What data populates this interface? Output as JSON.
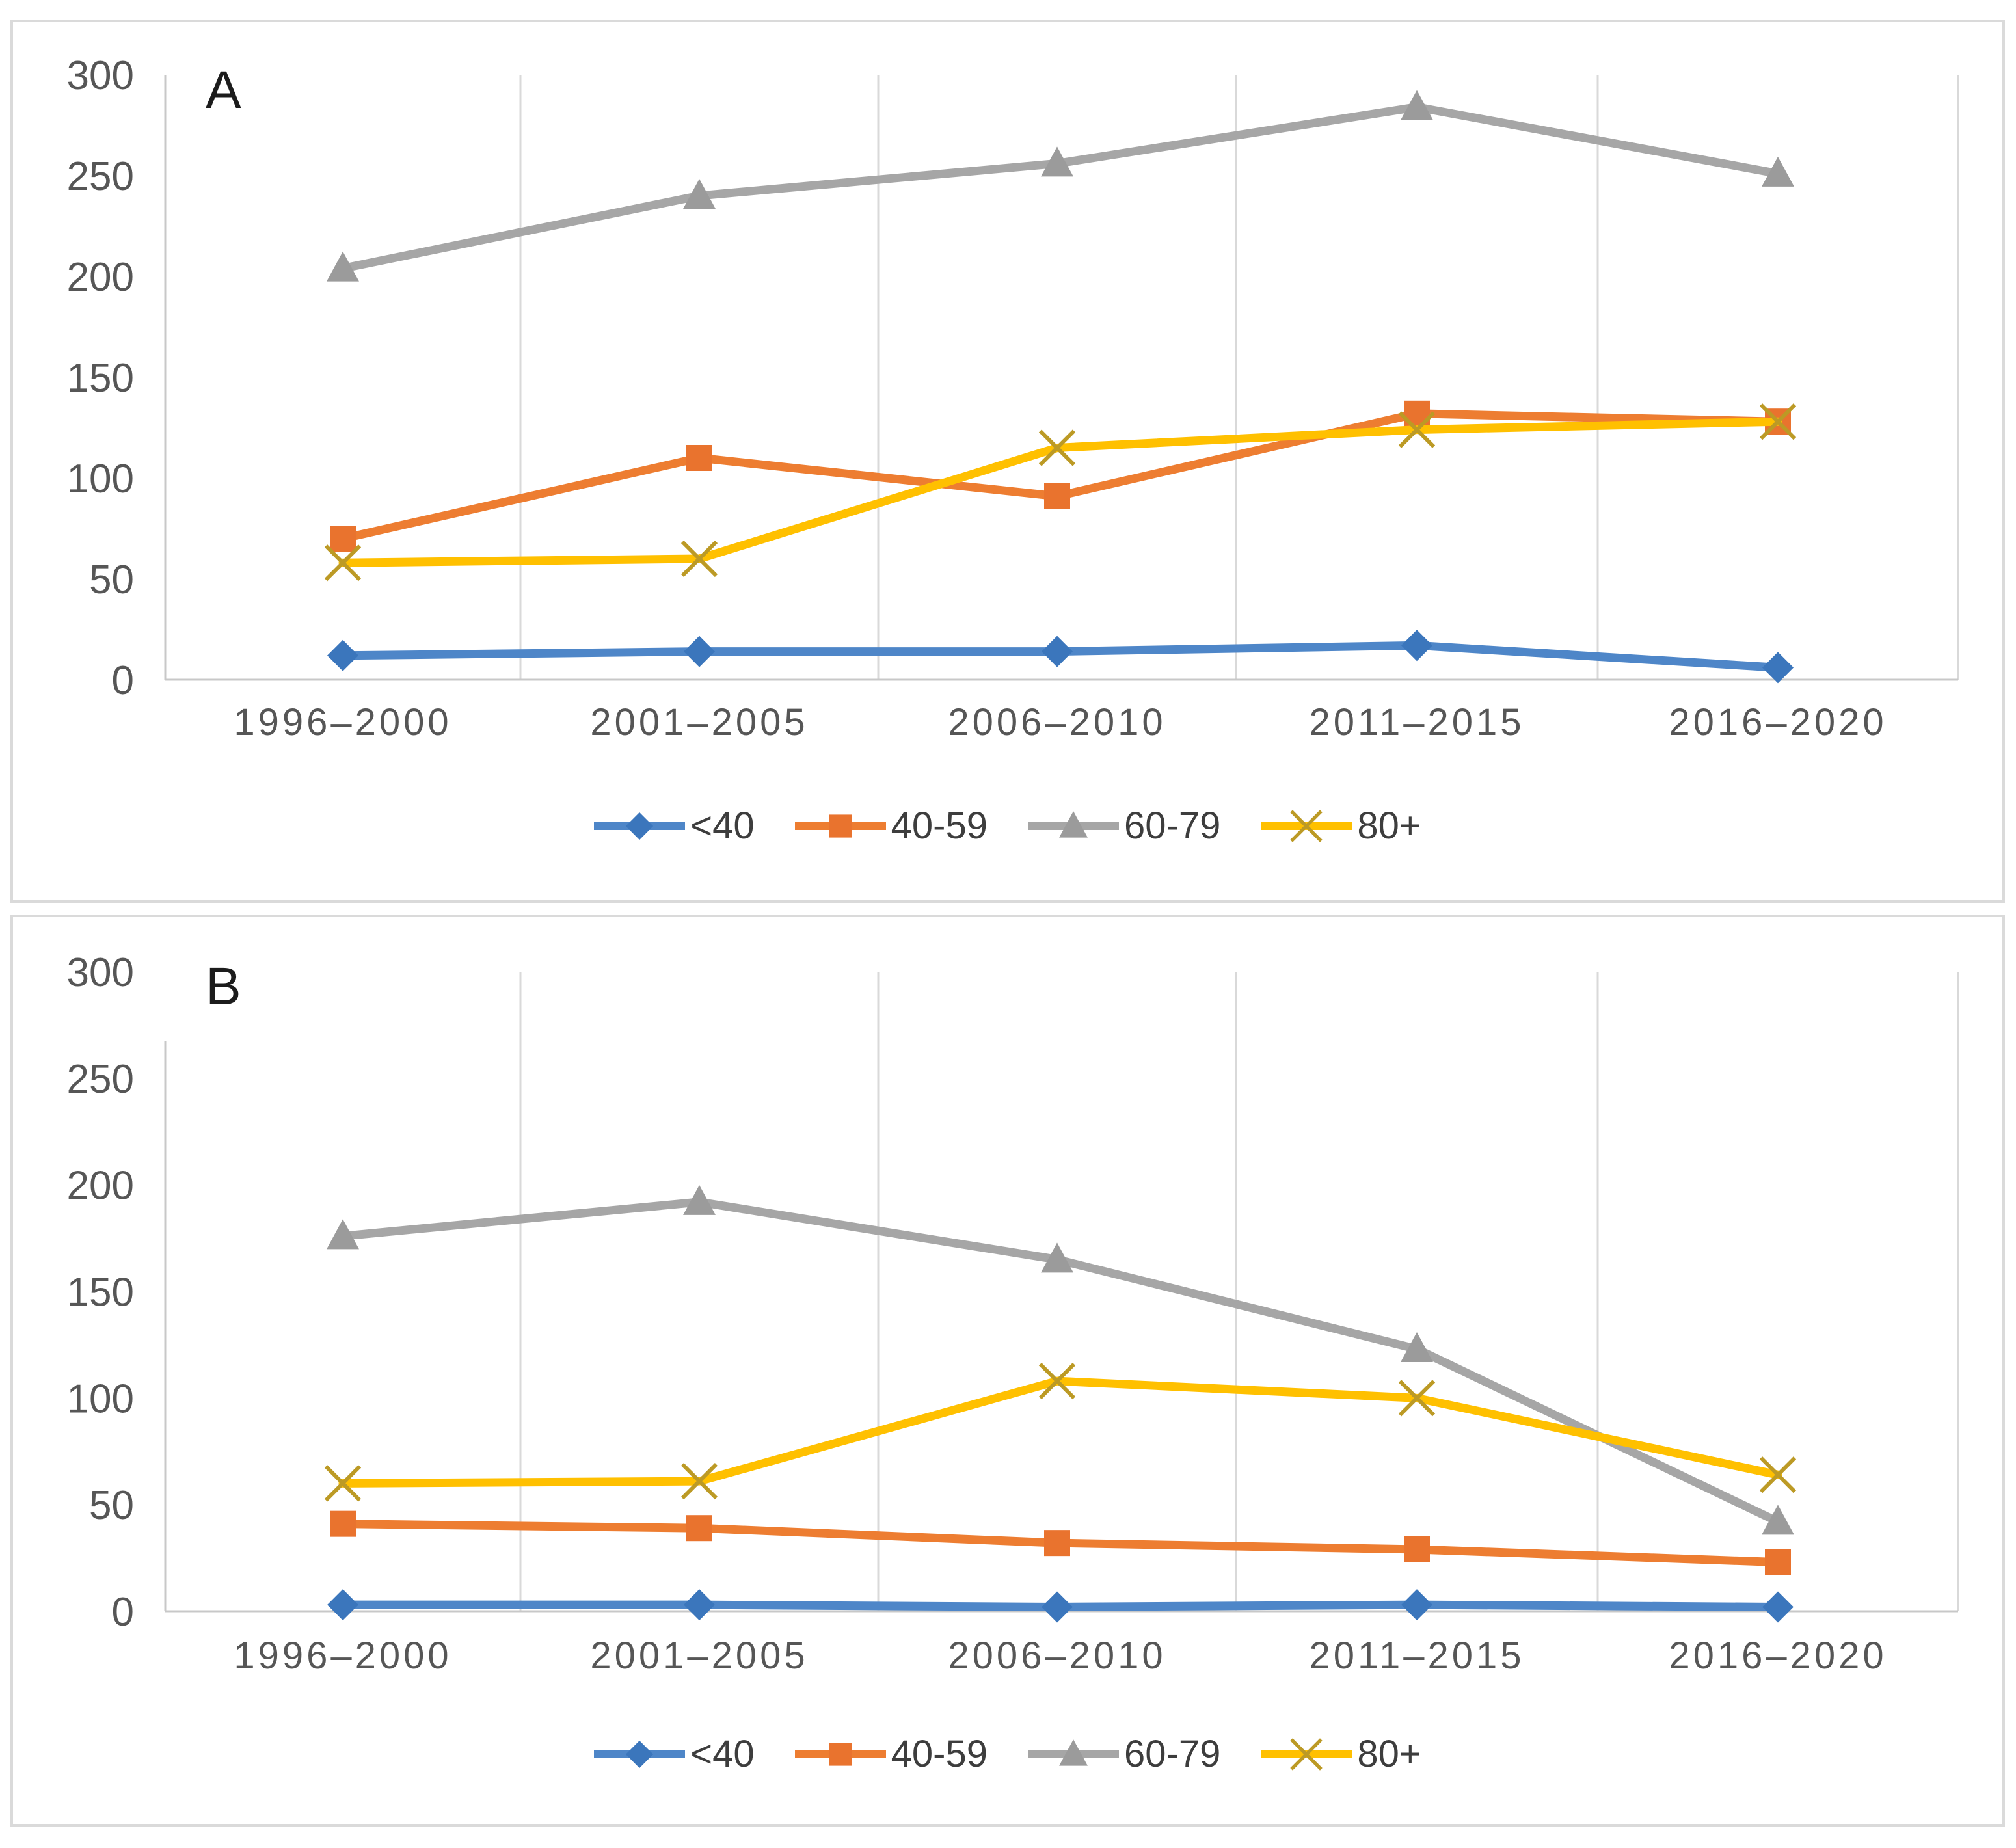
{
  "style": {
    "background": "#FFFFFF",
    "panel_border": "#DADADA",
    "grid_color": "#D9D9D9",
    "axis_color": "#C8C8C8",
    "tick_label_color": "#565656",
    "legend_text_color": "#3D3D3D",
    "letter_color": "#1C1C1C"
  },
  "chart_data": [
    {
      "type": "line",
      "panel_label": "A",
      "title": "",
      "xlabel": "",
      "ylabel": "",
      "categories": [
        "1996–2000",
        "2001–2005",
        "2006–2010",
        "2011–2015",
        "2016–2020"
      ],
      "yticks": [
        0,
        50,
        100,
        150,
        200,
        250,
        300
      ],
      "ylim": [
        0,
        300
      ],
      "grid": "vertical-only",
      "legend_position": "bottom",
      "series": [
        {
          "name": "<40",
          "marker": "diamond",
          "color": "#4E86C8",
          "marker_color": "#3B76BC",
          "values": [
            12,
            14,
            14,
            17,
            6
          ]
        },
        {
          "name": "40-59",
          "marker": "square",
          "color": "#ED7D31",
          "marker_color": "#E9732E",
          "values": [
            70,
            110,
            91,
            132,
            128
          ]
        },
        {
          "name": "60-79",
          "marker": "triangle",
          "color": "#A6A6A6",
          "marker_color": "#9B9B9B",
          "values": [
            204,
            240,
            256,
            284,
            251
          ]
        },
        {
          "name": "80+",
          "marker": "x",
          "color": "#FFC000",
          "marker_color": "#BC9A25",
          "values": [
            58,
            60,
            115,
            124,
            128
          ]
        }
      ]
    },
    {
      "type": "line",
      "panel_label": "B",
      "title": "",
      "xlabel": "",
      "ylabel": "",
      "categories": [
        "1996–2000",
        "2001–2005",
        "2006–2010",
        "2011–2015",
        "2016–2020"
      ],
      "yticks": [
        0,
        50,
        100,
        150,
        200,
        250,
        300
      ],
      "ylim": [
        0,
        300
      ],
      "grid": "vertical-only",
      "legend_position": "bottom",
      "series": [
        {
          "name": "<40",
          "marker": "diamond",
          "color": "#4E86C8",
          "marker_color": "#3B76BC",
          "values": [
            3,
            3,
            2,
            3,
            2
          ]
        },
        {
          "name": "40-59",
          "marker": "square",
          "color": "#ED7D31",
          "marker_color": "#E9732E",
          "values": [
            41,
            39,
            32,
            29,
            23
          ]
        },
        {
          "name": "60-79",
          "marker": "triangle",
          "color": "#A6A6A6",
          "marker_color": "#9B9B9B",
          "values": [
            176,
            192,
            165,
            123,
            42
          ]
        },
        {
          "name": "80+",
          "marker": "x",
          "color": "#FFC000",
          "marker_color": "#BC9A25",
          "values": [
            60,
            61,
            108,
            100,
            64
          ]
        }
      ]
    }
  ]
}
